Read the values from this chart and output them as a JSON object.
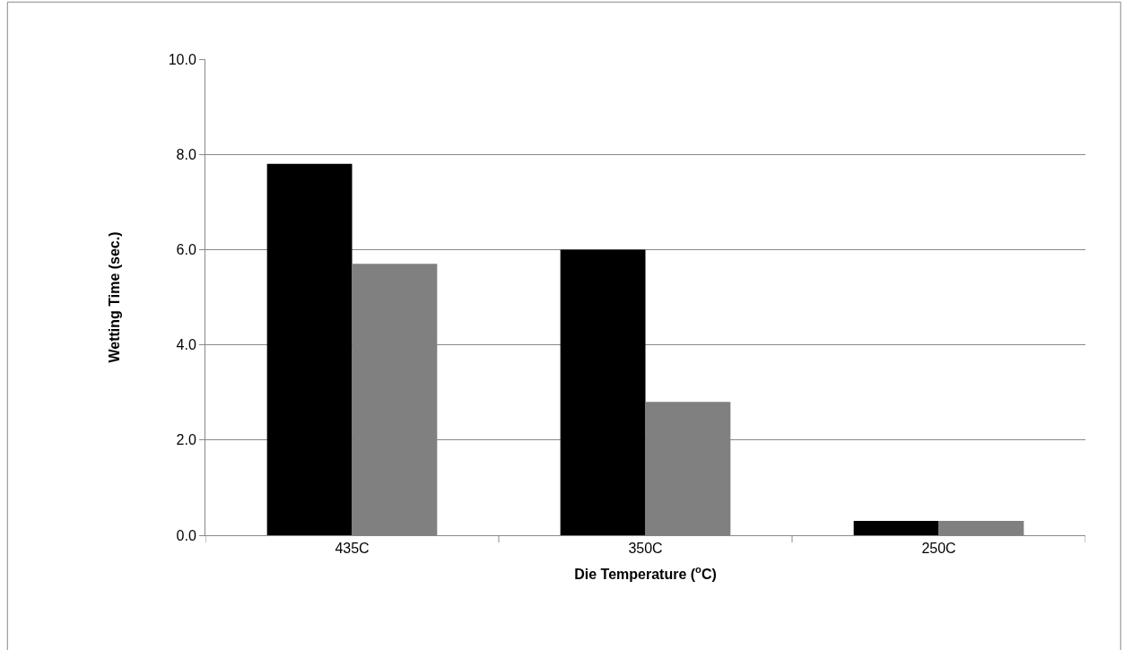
{
  "chart_data": {
    "type": "bar",
    "xlabel": "Die Temperature ($^{o}$C)",
    "ylabel": "Wetting Time (sec.)",
    "categories": [
      "435C",
      "350C",
      "250C"
    ],
    "series": [
      {
        "color": "#000000",
        "values": [
          7.8,
          6.0,
          0.3
        ]
      },
      {
        "color": "#808080",
        "values": [
          5.7,
          2.8,
          0.3
        ]
      }
    ],
    "ylim": [
      0,
      10
    ],
    "yticks": [
      {
        "value": 0,
        "label": "0.0"
      },
      {
        "value": 2,
        "label": "2.0"
      },
      {
        "value": 4,
        "label": "4.0"
      },
      {
        "value": 6,
        "label": "6.0"
      },
      {
        "value": 8,
        "label": "8.0"
      },
      {
        "value": 10,
        "label": "10.0"
      }
    ],
    "grid": "y",
    "legend": false
  }
}
